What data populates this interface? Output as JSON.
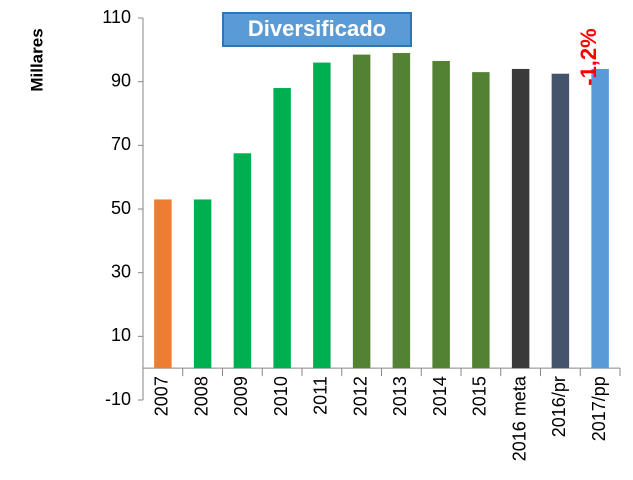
{
  "chart_data": {
    "type": "bar",
    "title": "Diversificado",
    "ylabel": "Millares",
    "annotation": "-1,2%",
    "categories": [
      "2007",
      "2008",
      "2009",
      "2010",
      "2011",
      "2012",
      "2013",
      "2014",
      "2015",
      "2016 meta",
      "2016/pr",
      "2017/pp"
    ],
    "values": [
      53,
      53,
      67.5,
      88,
      96,
      98.5,
      99,
      96.5,
      93,
      94,
      92.5,
      94
    ],
    "colors": [
      "#ed7d31",
      "#00b050",
      "#00b050",
      "#00b050",
      "#00b050",
      "#548235",
      "#548235",
      "#548235",
      "#548235",
      "#3a3a3a",
      "#44546a",
      "#5b9bd5"
    ],
    "ylim": [
      -10,
      110
    ],
    "yticks": [
      -10,
      10,
      30,
      50,
      70,
      90,
      110
    ],
    "grid": false
  }
}
